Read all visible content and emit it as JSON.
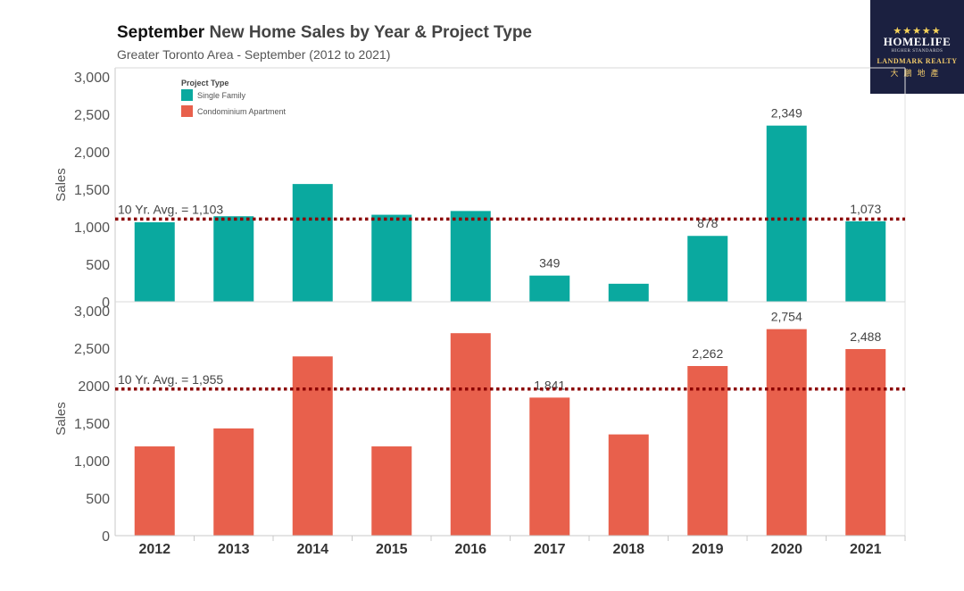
{
  "header": {
    "title_bold": "September",
    "title_rest": "New Home Sales by Year & Project Type",
    "subtitle": "Greater Toronto Area - September (2012 to 2021)"
  },
  "logo": {
    "stars": "★★★★★",
    "brand": "HOMELIFE",
    "tagline": "HIGHER STANDARDS",
    "name": "LANDMARK REALTY",
    "chinese": "大鵬地產"
  },
  "colors": {
    "single_family": "#0aa99f",
    "condo": "#e8604c",
    "avg_line": "#8b0000"
  },
  "chart_data": {
    "type": "bar",
    "categories": [
      "2012",
      "2013",
      "2014",
      "2015",
      "2016",
      "2017",
      "2018",
      "2019",
      "2020",
      "2021"
    ],
    "legend": {
      "title": "Project Type",
      "placement": "top-left",
      "items": [
        "Single Family",
        "Condominium Apartment"
      ]
    },
    "panels": [
      {
        "series": "Single Family",
        "ylabel": "Sales",
        "ylim": [
          0,
          3000
        ],
        "yticks": [
          0,
          500,
          1000,
          1500,
          2000,
          2500,
          3000
        ],
        "ytick_labels": [
          "0",
          "500",
          "1,000",
          "1,500",
          "2,000",
          "2,500",
          "3,000"
        ],
        "values": [
          1060,
          1140,
          1570,
          1160,
          1210,
          349,
          240,
          878,
          2349,
          1073
        ],
        "data_labels": [
          null,
          null,
          null,
          null,
          null,
          "349",
          null,
          "878",
          "2,349",
          "1,073"
        ],
        "avg_value": 1103,
        "avg_label": "10 Yr. Avg. = 1,103"
      },
      {
        "series": "Condominium Apartment",
        "ylabel": "Sales",
        "ylim": [
          0,
          3000
        ],
        "yticks": [
          0,
          500,
          1000,
          1500,
          2000,
          2500,
          3000
        ],
        "ytick_labels": [
          "0",
          "500",
          "1,000",
          "1,500",
          "2000",
          "2,500",
          "3,000"
        ],
        "values": [
          1190,
          1430,
          2390,
          1190,
          2700,
          1841,
          1350,
          2262,
          2754,
          2488
        ],
        "data_labels": [
          null,
          null,
          null,
          null,
          null,
          "1,841",
          null,
          "2,262",
          "2,754",
          "2,488"
        ],
        "avg_value": 1955,
        "avg_label": "10 Yr. Avg. = 1,955"
      }
    ]
  }
}
